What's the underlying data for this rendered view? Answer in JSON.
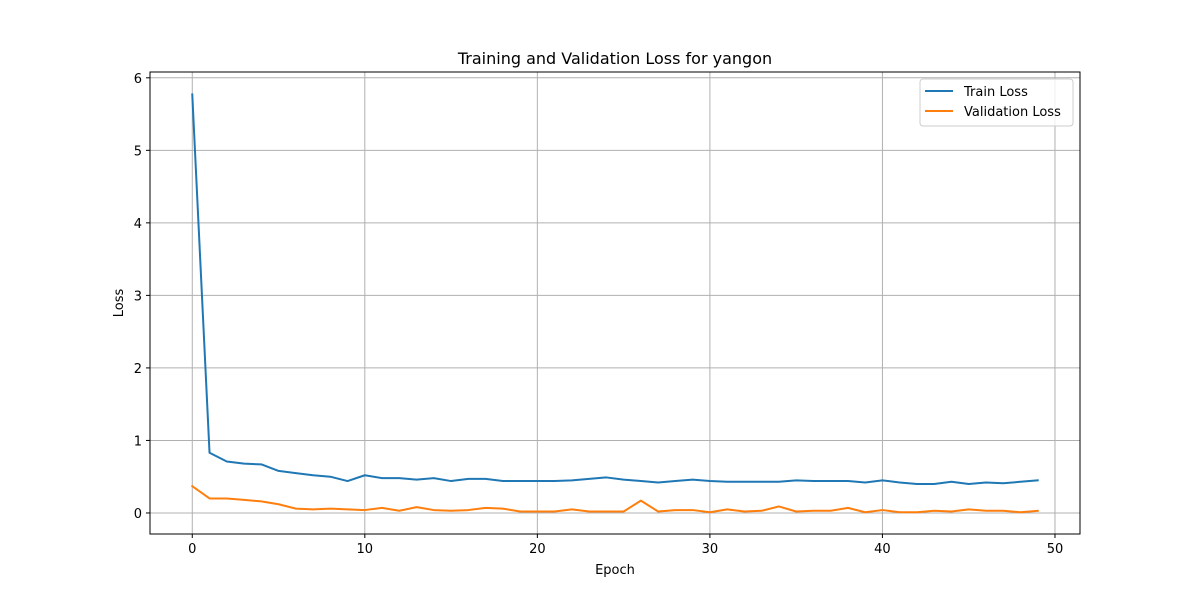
{
  "chart_data": {
    "type": "line",
    "title": "Training and Validation Loss for yangon",
    "xlabel": "Epoch",
    "ylabel": "Loss",
    "xlim": [
      -2.45,
      51.45
    ],
    "ylim": [
      -0.29,
      6.08
    ],
    "xticks": [
      0,
      10,
      20,
      30,
      40,
      50
    ],
    "yticks": [
      0,
      1,
      2,
      3,
      4,
      5,
      6
    ],
    "grid": true,
    "legend_position": "top-right",
    "x": [
      0,
      1,
      2,
      3,
      4,
      5,
      6,
      7,
      8,
      9,
      10,
      11,
      12,
      13,
      14,
      15,
      16,
      17,
      18,
      19,
      20,
      21,
      22,
      23,
      24,
      25,
      26,
      27,
      28,
      29,
      30,
      31,
      32,
      33,
      34,
      35,
      36,
      37,
      38,
      39,
      40,
      41,
      42,
      43,
      44,
      45,
      46,
      47,
      48,
      49
    ],
    "series": [
      {
        "name": "Train Loss",
        "color": "#1f77b4",
        "values": [
          5.77,
          0.83,
          0.71,
          0.68,
          0.67,
          0.58,
          0.55,
          0.52,
          0.5,
          0.44,
          0.52,
          0.48,
          0.48,
          0.46,
          0.48,
          0.44,
          0.47,
          0.47,
          0.44,
          0.44,
          0.44,
          0.44,
          0.45,
          0.47,
          0.49,
          0.46,
          0.44,
          0.42,
          0.44,
          0.46,
          0.44,
          0.43,
          0.43,
          0.43,
          0.43,
          0.45,
          0.44,
          0.44,
          0.44,
          0.42,
          0.45,
          0.42,
          0.4,
          0.4,
          0.43,
          0.4,
          0.42,
          0.41,
          0.43,
          0.45
        ]
      },
      {
        "name": "Validation Loss",
        "color": "#ff7f0e",
        "values": [
          0.37,
          0.2,
          0.2,
          0.18,
          0.16,
          0.12,
          0.06,
          0.05,
          0.06,
          0.05,
          0.04,
          0.07,
          0.03,
          0.08,
          0.04,
          0.03,
          0.04,
          0.07,
          0.06,
          0.02,
          0.02,
          0.02,
          0.05,
          0.02,
          0.02,
          0.02,
          0.17,
          0.02,
          0.04,
          0.04,
          0.01,
          0.05,
          0.02,
          0.03,
          0.09,
          0.02,
          0.03,
          0.03,
          0.07,
          0.01,
          0.04,
          0.01,
          0.01,
          0.03,
          0.02,
          0.05,
          0.03,
          0.03,
          0.01,
          0.03
        ]
      }
    ]
  }
}
